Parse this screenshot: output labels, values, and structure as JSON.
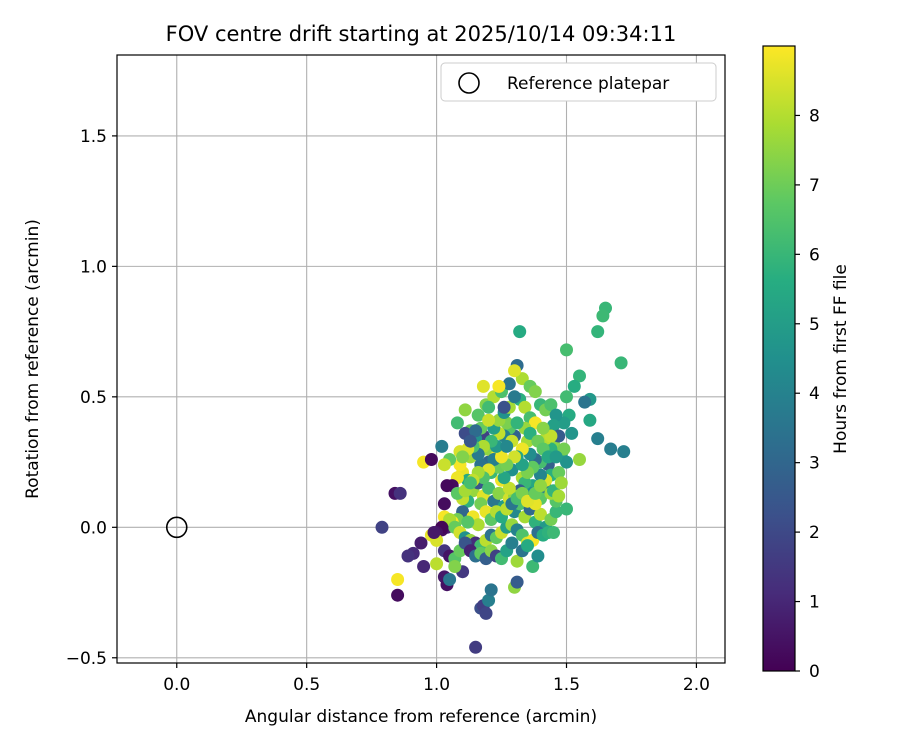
{
  "chart_data": {
    "type": "scatter",
    "title": "FOV centre drift starting at 2025/10/14 09:34:11",
    "xlabel": "Angular distance from reference (arcmin)",
    "ylabel": "Rotation from reference (arcmin)",
    "xlim": [
      -0.23,
      2.11
    ],
    "ylim": [
      -0.52,
      1.81
    ],
    "xticks": [
      0.0,
      0.5,
      1.0,
      1.5,
      2.0
    ],
    "xtick_labels": [
      "0.0",
      "0.5",
      "1.0",
      "1.5",
      "2.0"
    ],
    "yticks": [
      -0.5,
      0.0,
      0.5,
      1.0,
      1.5
    ],
    "ytick_labels": [
      "−0.5",
      "0.0",
      "0.5",
      "1.0",
      "1.5"
    ],
    "grid": true,
    "legend": {
      "position": "top-right",
      "entries": [
        "Reference platepar"
      ]
    },
    "reference_point": {
      "x": 0.0,
      "y": 0.0,
      "label": "Reference platepar"
    },
    "colorbar": {
      "label": "Hours from first FF file",
      "range": [
        0,
        9
      ],
      "ticks": [
        0,
        1,
        2,
        3,
        4,
        5,
        6,
        7,
        8
      ],
      "colormap": "viridis"
    },
    "points": [
      [
        1.65,
        0.84,
        6.0
      ],
      [
        1.64,
        0.81,
        6.1
      ],
      [
        1.62,
        0.75,
        5.9
      ],
      [
        1.71,
        0.63,
        6.0
      ],
      [
        1.32,
        0.75,
        5.5
      ],
      [
        1.5,
        0.68,
        6.3
      ],
      [
        1.72,
        0.29,
        3.9
      ],
      [
        1.67,
        0.3,
        3.8
      ],
      [
        1.62,
        0.34,
        3.9
      ],
      [
        1.59,
        0.41,
        5.4
      ],
      [
        1.59,
        0.49,
        4.8
      ],
      [
        1.57,
        0.48,
        3.5
      ],
      [
        1.55,
        0.58,
        5.9
      ],
      [
        1.53,
        0.54,
        5.6
      ],
      [
        1.5,
        0.5,
        6.2
      ],
      [
        1.51,
        0.43,
        5.5
      ],
      [
        1.49,
        0.4,
        5.0
      ],
      [
        1.52,
        0.36,
        4.7
      ],
      [
        1.55,
        0.26,
        7.6
      ],
      [
        1.48,
        0.28,
        5.2
      ],
      [
        1.45,
        0.32,
        7.4
      ],
      [
        1.44,
        0.3,
        5.8
      ],
      [
        1.42,
        0.34,
        8.0
      ],
      [
        1.43,
        0.24,
        2.8
      ],
      [
        1.4,
        0.25,
        6.3
      ],
      [
        1.38,
        0.26,
        3.2
      ],
      [
        1.36,
        0.28,
        4.4
      ],
      [
        1.35,
        0.33,
        7.8
      ],
      [
        1.33,
        0.3,
        8.8
      ],
      [
        1.31,
        0.27,
        5.3
      ],
      [
        1.3,
        0.35,
        2.9
      ],
      [
        1.28,
        0.38,
        6.6
      ],
      [
        1.27,
        0.4,
        7.2
      ],
      [
        1.26,
        0.35,
        4.0
      ],
      [
        1.24,
        0.36,
        8.2
      ],
      [
        1.23,
        0.3,
        5.7
      ],
      [
        1.22,
        0.28,
        8.9
      ],
      [
        1.2,
        0.25,
        3.0
      ],
      [
        1.19,
        0.3,
        7.5
      ],
      [
        1.18,
        0.35,
        1.8
      ],
      [
        1.17,
        0.38,
        6.9
      ],
      [
        1.15,
        0.34,
        4.6
      ],
      [
        1.13,
        0.37,
        7.0
      ],
      [
        1.11,
        0.36,
        2.1
      ],
      [
        1.09,
        0.29,
        8.5
      ],
      [
        1.08,
        0.4,
        6.2
      ],
      [
        1.1,
        0.21,
        8.7
      ],
      [
        1.12,
        0.18,
        5.5
      ],
      [
        1.14,
        0.14,
        7.6
      ],
      [
        1.16,
        0.17,
        2.4
      ],
      [
        1.18,
        0.12,
        8.6
      ],
      [
        1.2,
        0.15,
        6.3
      ],
      [
        1.22,
        0.1,
        3.6
      ],
      [
        1.24,
        0.13,
        7.4
      ],
      [
        1.26,
        0.08,
        5.0
      ],
      [
        1.28,
        0.11,
        8.4
      ],
      [
        1.3,
        0.06,
        4.2
      ],
      [
        1.32,
        0.09,
        6.5
      ],
      [
        1.34,
        0.04,
        7.8
      ],
      [
        1.36,
        0.07,
        3.1
      ],
      [
        1.38,
        0.02,
        5.8
      ],
      [
        1.4,
        0.05,
        8.1
      ],
      [
        1.42,
        0.0,
        4.9
      ],
      [
        1.44,
        0.03,
        7.1
      ],
      [
        1.46,
        0.06,
        6.0
      ],
      [
        1.41,
        0.13,
        8.3
      ],
      [
        1.37,
        0.16,
        5.4
      ],
      [
        1.33,
        0.19,
        7.9
      ],
      [
        1.29,
        0.22,
        4.5
      ],
      [
        1.25,
        0.18,
        8.8
      ],
      [
        1.21,
        0.21,
        6.1
      ],
      [
        1.17,
        0.24,
        3.4
      ],
      [
        1.13,
        0.27,
        7.7
      ],
      [
        1.09,
        0.24,
        8.9
      ],
      [
        1.05,
        0.26,
        6.8
      ],
      [
        1.03,
        0.24,
        8.3
      ],
      [
        0.95,
        0.25,
        8.9
      ],
      [
        0.98,
        0.26,
        0.2
      ],
      [
        1.02,
        0.31,
        3.8
      ],
      [
        1.11,
        0.45,
        7.5
      ],
      [
        1.16,
        0.43,
        6.6
      ],
      [
        1.19,
        0.47,
        7.3
      ],
      [
        1.22,
        0.5,
        8.0
      ],
      [
        1.25,
        0.52,
        6.4
      ],
      [
        1.28,
        0.55,
        3.5
      ],
      [
        1.18,
        0.54,
        8.6
      ],
      [
        1.24,
        0.54,
        8.9
      ],
      [
        1.31,
        0.62,
        3.2
      ],
      [
        1.33,
        0.57,
        7.9
      ],
      [
        1.3,
        0.6,
        8.6
      ],
      [
        1.32,
        0.49,
        5.7
      ],
      [
        1.36,
        0.54,
        6.9
      ],
      [
        1.38,
        0.52,
        7.3
      ],
      [
        1.4,
        0.47,
        6.0
      ],
      [
        1.42,
        0.45,
        7.1
      ],
      [
        1.44,
        0.47,
        6.4
      ],
      [
        1.46,
        0.43,
        4.7
      ],
      [
        1.45,
        0.39,
        5.1
      ],
      [
        1.47,
        0.35,
        2.6
      ],
      [
        1.49,
        0.3,
        7.1
      ],
      [
        1.5,
        0.25,
        4.6
      ],
      [
        1.44,
        0.2,
        5.7
      ],
      [
        1.42,
        0.15,
        3.7
      ],
      [
        1.4,
        0.11,
        6.7
      ],
      [
        1.38,
        0.09,
        8.7
      ],
      [
        1.36,
        0.13,
        4.4
      ],
      [
        1.34,
        0.17,
        6.0
      ],
      [
        1.32,
        0.14,
        2.7
      ],
      [
        1.3,
        0.12,
        7.5
      ],
      [
        1.28,
        0.15,
        8.2
      ],
      [
        1.26,
        0.19,
        5.3
      ],
      [
        1.24,
        0.23,
        7.0
      ],
      [
        1.22,
        0.26,
        3.9
      ],
      [
        1.2,
        0.22,
        8.6
      ],
      [
        1.18,
        0.19,
        6.5
      ],
      [
        1.16,
        0.21,
        7.8
      ],
      [
        1.14,
        0.18,
        8.2
      ],
      [
        1.12,
        0.1,
        5.8
      ],
      [
        1.1,
        0.06,
        3.0
      ],
      [
        1.08,
        0.03,
        7.1
      ],
      [
        1.06,
        0.02,
        8.9
      ],
      [
        1.04,
        0.0,
        0.8
      ],
      [
        1.02,
        -0.01,
        0.3
      ],
      [
        1.03,
        0.04,
        8.9
      ],
      [
        1.05,
        0.03,
        7.9
      ],
      [
        1.07,
        0.0,
        6.9
      ],
      [
        1.09,
        -0.02,
        8.4
      ],
      [
        1.11,
        -0.04,
        4.5
      ],
      [
        1.13,
        -0.05,
        7.6
      ],
      [
        1.15,
        -0.06,
        1.2
      ],
      [
        1.17,
        -0.07,
        6.2
      ],
      [
        1.19,
        -0.05,
        8.1
      ],
      [
        1.21,
        -0.03,
        3.4
      ],
      [
        1.23,
        -0.04,
        6.8
      ],
      [
        1.25,
        -0.02,
        8.3
      ],
      [
        1.27,
        0.0,
        5.1
      ],
      [
        1.29,
        0.01,
        7.6
      ],
      [
        1.31,
        -0.01,
        4.0
      ],
      [
        1.33,
        -0.03,
        6.5
      ],
      [
        1.35,
        -0.06,
        8.5
      ],
      [
        1.37,
        -0.05,
        8.9
      ],
      [
        1.39,
        -0.02,
        3.3
      ],
      [
        1.41,
        -0.03,
        5.6
      ],
      [
        1.43,
        -0.02,
        5.8
      ],
      [
        1.45,
        -0.02,
        6.1
      ],
      [
        1.5,
        0.07,
        6.0
      ],
      [
        1.46,
        0.1,
        6.6
      ],
      [
        1.44,
        0.13,
        7.7
      ],
      [
        1.42,
        0.18,
        8.5
      ],
      [
        1.4,
        0.2,
        4.1
      ],
      [
        1.37,
        0.23,
        6.8
      ],
      [
        1.35,
        0.21,
        7.2
      ],
      [
        1.33,
        0.24,
        5.2
      ],
      [
        1.3,
        0.27,
        8.4
      ],
      [
        1.27,
        0.24,
        7.1
      ],
      [
        1.25,
        0.27,
        8.8
      ],
      [
        1.23,
        0.31,
        4.8
      ],
      [
        1.21,
        0.33,
        6.0
      ],
      [
        1.18,
        0.31,
        7.9
      ],
      [
        1.16,
        0.28,
        3.7
      ],
      [
        1.14,
        0.31,
        6.4
      ],
      [
        1.12,
        0.3,
        8.5
      ],
      [
        1.1,
        0.27,
        7.3
      ],
      [
        1.08,
        0.19,
        8.8
      ],
      [
        1.06,
        0.16,
        0.3
      ],
      [
        1.04,
        0.16,
        0.2
      ],
      [
        1.03,
        0.09,
        0.3
      ],
      [
        1.02,
        0.0,
        0.1
      ],
      [
        1.0,
        -0.02,
        0.4
      ],
      [
        0.98,
        -0.03,
        8.7
      ],
      [
        1.0,
        -0.05,
        8.5
      ],
      [
        1.03,
        -0.09,
        1.4
      ],
      [
        1.05,
        -0.11,
        0.5
      ],
      [
        1.07,
        -0.12,
        6.6
      ],
      [
        1.09,
        -0.09,
        6.9
      ],
      [
        1.11,
        -0.06,
        2.4
      ],
      [
        1.13,
        -0.09,
        0.9
      ],
      [
        1.15,
        -0.11,
        3.3
      ],
      [
        1.17,
        -0.1,
        6.8
      ],
      [
        1.19,
        -0.12,
        2.7
      ],
      [
        1.21,
        -0.09,
        7.4
      ],
      [
        1.23,
        -0.11,
        1.8
      ],
      [
        1.25,
        -0.12,
        6.2
      ],
      [
        1.27,
        -0.09,
        5.2
      ],
      [
        1.29,
        -0.06,
        3.9
      ],
      [
        1.31,
        -0.13,
        7.7
      ],
      [
        1.33,
        -0.09,
        3.5
      ],
      [
        1.35,
        -0.07,
        5.5
      ],
      [
        1.37,
        -0.15,
        6.1
      ],
      [
        1.39,
        -0.11,
        4.4
      ],
      [
        1.1,
        -0.17,
        1.5
      ],
      [
        1.07,
        -0.15,
        7.3
      ],
      [
        1.03,
        -0.19,
        0.6
      ],
      [
        1.04,
        -0.22,
        0.4
      ],
      [
        1.05,
        -0.2,
        3.6
      ],
      [
        1.0,
        -0.14,
        8.1
      ],
      [
        0.95,
        -0.15,
        1.0
      ],
      [
        0.91,
        -0.1,
        1.1
      ],
      [
        0.89,
        -0.11,
        1.3
      ],
      [
        0.94,
        -0.06,
        0.7
      ],
      [
        0.99,
        -0.02,
        0.6
      ],
      [
        0.85,
        -0.2,
        8.9
      ],
      [
        0.85,
        -0.26,
        0.3
      ],
      [
        0.79,
        0.0,
        1.8
      ],
      [
        0.84,
        0.13,
        0.4
      ],
      [
        0.86,
        0.13,
        1.3
      ],
      [
        1.17,
        -0.31,
        2.2
      ],
      [
        1.18,
        -0.3,
        1.7
      ],
      [
        1.19,
        -0.33,
        1.9
      ],
      [
        1.2,
        -0.28,
        3.9
      ],
      [
        1.21,
        -0.24,
        3.5
      ],
      [
        1.15,
        -0.46,
        1.6
      ],
      [
        1.3,
        -0.23,
        7.5
      ],
      [
        1.31,
        -0.21,
        2.6
      ],
      [
        1.2,
        0.46,
        6.2
      ],
      [
        1.22,
        0.38,
        5.1
      ],
      [
        1.24,
        0.41,
        7.6
      ],
      [
        1.26,
        0.44,
        4.6
      ],
      [
        1.28,
        0.46,
        7.8
      ],
      [
        1.3,
        0.5,
        3.7
      ],
      [
        1.26,
        0.46,
        2.3
      ],
      [
        1.34,
        0.46,
        8.0
      ],
      [
        1.36,
        0.42,
        6.3
      ],
      [
        1.38,
        0.4,
        8.9
      ],
      [
        1.34,
        0.38,
        7.6
      ],
      [
        1.31,
        0.4,
        5.9
      ],
      [
        1.29,
        0.33,
        8.3
      ],
      [
        1.27,
        0.31,
        4.2
      ],
      [
        1.2,
        0.41,
        8.3
      ],
      [
        1.15,
        0.37,
        3.2
      ],
      [
        1.13,
        0.33,
        2.5
      ],
      [
        1.17,
        0.09,
        7.1
      ],
      [
        1.19,
        0.06,
        8.7
      ],
      [
        1.21,
        0.03,
        6.7
      ],
      [
        1.23,
        0.06,
        8.0
      ],
      [
        1.25,
        0.04,
        5.6
      ],
      [
        1.27,
        0.07,
        8.1
      ],
      [
        1.29,
        0.09,
        3.6
      ],
      [
        1.31,
        0.11,
        6.3
      ],
      [
        1.33,
        0.13,
        7.2
      ],
      [
        1.35,
        0.1,
        8.6
      ],
      [
        1.38,
        0.13,
        6.9
      ],
      [
        1.4,
        0.16,
        7.5
      ],
      [
        1.14,
        0.04,
        8.8
      ],
      [
        1.16,
        0.01,
        7.9
      ],
      [
        1.12,
        0.02,
        6.6
      ],
      [
        1.1,
        0.11,
        8.2
      ],
      [
        1.08,
        0.13,
        6.7
      ],
      [
        1.11,
        0.14,
        7.8
      ],
      [
        1.13,
        0.17,
        6.3
      ],
      [
        1.36,
        0.36,
        5.7
      ],
      [
        1.39,
        0.33,
        7.0
      ],
      [
        1.41,
        0.3,
        6.7
      ],
      [
        1.43,
        0.27,
        5.4
      ],
      [
        1.47,
        0.21,
        6.9
      ],
      [
        1.45,
        0.14,
        5.9
      ],
      [
        1.47,
        0.12,
        7.8
      ],
      [
        1.48,
        0.17,
        7.7
      ],
      [
        1.46,
        0.27,
        4.9
      ],
      [
        1.44,
        0.35,
        8.2
      ],
      [
        1.41,
        0.38,
        7.4
      ]
    ]
  }
}
